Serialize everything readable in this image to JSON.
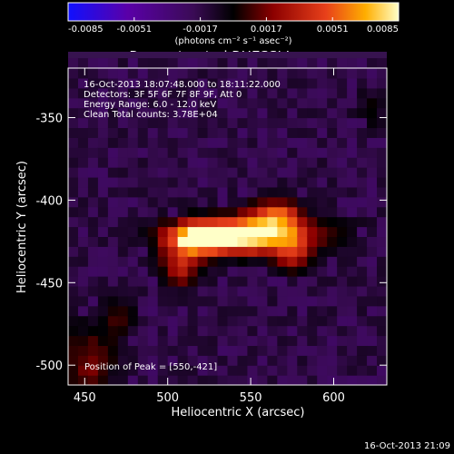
{
  "chart_data": {
    "type": "heatmap",
    "title": "Reconstructed RHESSI Image",
    "xlabel": "Heliocentric X (arcsec)",
    "ylabel": "Heliocentric Y (arcsec)",
    "xlim": [
      440,
      632
    ],
    "ylim": [
      -512,
      -320
    ],
    "x_ticks": [
      450,
      500,
      550,
      600
    ],
    "y_ticks": [
      -350,
      -400,
      -450,
      -500
    ],
    "grid": false,
    "colormap": [
      "#1010ff",
      "#5a00a8",
      "#3a0b55",
      "#000000",
      "#8c0000",
      "#e8401a",
      "#ffae00",
      "#ffffc8"
    ],
    "colorbar": {
      "min": -0.0085,
      "max": 0.0085,
      "tick_labels": [
        "-0.0085",
        "-0.0051",
        "-0.0017",
        "0.0017",
        "0.0051",
        "0.0085"
      ],
      "unit_label": "(photons cm⁻² s⁻¹ asec⁻²)"
    },
    "info_lines": [
      "16-Oct-2013 18:07:48.000 to 18:11:22.000",
      "Detectors: 3F 5F 6F 7F 8F 9F, Att 0",
      "Energy Range: 6.0 - 12.0 keV",
      "Clean     Total counts: 3.78E+04"
    ],
    "peak_label": "Position of Peak = [550,-421]",
    "peak": [
      550,
      -421
    ],
    "footer_timestamp": "16-Oct-2013 21:09"
  }
}
